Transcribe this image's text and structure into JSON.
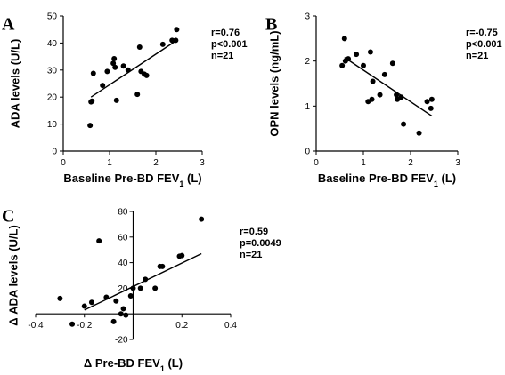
{
  "chart_data": [
    {
      "panel": "A",
      "type": "scatter",
      "xlabel": "Baseline Pre-BD FEV",
      "xlabel_sub": "1",
      "xlabel_unit": " (L)",
      "ylabel": "ADA levels (U/L)",
      "xlim": [
        0,
        3
      ],
      "ylim": [
        0,
        50
      ],
      "xticks": [
        "0",
        "1",
        "2",
        "3"
      ],
      "yticks": [
        "0",
        "10",
        "20",
        "30",
        "40",
        "50"
      ],
      "stats": [
        "r=0.76",
        "p<0.001",
        "n=21"
      ],
      "points": [
        [
          0.58,
          9.5
        ],
        [
          0.6,
          18.2
        ],
        [
          0.62,
          18.5
        ],
        [
          0.65,
          28.8
        ],
        [
          0.85,
          24.3
        ],
        [
          0.95,
          29.5
        ],
        [
          1.08,
          32.5
        ],
        [
          1.1,
          34.2
        ],
        [
          1.12,
          31.0
        ],
        [
          1.15,
          18.8
        ],
        [
          1.3,
          31.5
        ],
        [
          1.4,
          30.0
        ],
        [
          1.6,
          21.0
        ],
        [
          1.65,
          38.5
        ],
        [
          1.68,
          29.5
        ],
        [
          1.75,
          28.5
        ],
        [
          1.8,
          28.0
        ],
        [
          2.15,
          39.5
        ],
        [
          2.35,
          41.0
        ],
        [
          2.43,
          41.0
        ],
        [
          2.45,
          45.0
        ]
      ],
      "trend": [
        [
          0.6,
          20.0
        ],
        [
          2.45,
          41.0
        ]
      ]
    },
    {
      "panel": "B",
      "type": "scatter",
      "xlabel": "Baseline Pre-BD FEV",
      "xlabel_sub": "1",
      "xlabel_unit": " (L)",
      "ylabel": "OPN levels (ng/mL)",
      "xlim": [
        0,
        3
      ],
      "ylim": [
        0,
        3
      ],
      "xticks": [
        "0",
        "1",
        "2",
        "3"
      ],
      "yticks": [
        "0",
        "1",
        "2",
        "3"
      ],
      "stats": [
        "r=-0.75",
        "p<0.001",
        "n=21"
      ],
      "points": [
        [
          0.55,
          1.9
        ],
        [
          0.6,
          2.5
        ],
        [
          0.62,
          2.0
        ],
        [
          0.68,
          2.05
        ],
        [
          0.85,
          2.15
        ],
        [
          1.0,
          1.9
        ],
        [
          1.1,
          1.1
        ],
        [
          1.15,
          2.2
        ],
        [
          1.18,
          1.15
        ],
        [
          1.2,
          1.55
        ],
        [
          1.35,
          1.25
        ],
        [
          1.45,
          1.7
        ],
        [
          1.62,
          1.95
        ],
        [
          1.7,
          1.25
        ],
        [
          1.72,
          1.15
        ],
        [
          1.8,
          1.2
        ],
        [
          1.85,
          0.6
        ],
        [
          2.18,
          0.4
        ],
        [
          2.35,
          1.1
        ],
        [
          2.43,
          0.95
        ],
        [
          2.45,
          1.15
        ]
      ],
      "trend": [
        [
          0.6,
          2.08
        ],
        [
          2.45,
          0.78
        ]
      ]
    },
    {
      "panel": "C",
      "type": "scatter",
      "xlabel": "Δ Pre-BD FEV",
      "xlabel_sub": "1",
      "xlabel_unit": " (L)",
      "ylabel": "Δ ADA levels (U/L)",
      "xlim": [
        -0.4,
        0.4
      ],
      "ylim": [
        -20,
        80
      ],
      "xticks": [
        "-0.4",
        "-0.2",
        "0.2",
        "0.4"
      ],
      "xtick_values": [
        -0.4,
        -0.2,
        0.2,
        0.4
      ],
      "yticks": [
        "-20",
        "20",
        "40",
        "60",
        "80"
      ],
      "ytick_values": [
        -20,
        20,
        40,
        60,
        80
      ],
      "stats": [
        "r=0.59",
        "p=0.0049",
        "n=21"
      ],
      "points": [
        [
          -0.3,
          12.0
        ],
        [
          -0.25,
          -8.0
        ],
        [
          -0.2,
          6.0
        ],
        [
          -0.17,
          9.0
        ],
        [
          -0.14,
          57.0
        ],
        [
          -0.11,
          13.0
        ],
        [
          -0.08,
          -6.0
        ],
        [
          -0.07,
          10.0
        ],
        [
          -0.05,
          0.0
        ],
        [
          -0.04,
          4.0
        ],
        [
          -0.03,
          -1.0
        ],
        [
          -0.01,
          14.0
        ],
        [
          0.0,
          20.0
        ],
        [
          0.03,
          20.0
        ],
        [
          0.05,
          27.0
        ],
        [
          0.09,
          20.0
        ],
        [
          0.11,
          37.0
        ],
        [
          0.12,
          37.0
        ],
        [
          0.19,
          45.0
        ],
        [
          0.2,
          45.5
        ],
        [
          0.28,
          74.0
        ]
      ],
      "trend": [
        [
          -0.2,
          3.0
        ],
        [
          0.28,
          47.0
        ]
      ]
    }
  ]
}
